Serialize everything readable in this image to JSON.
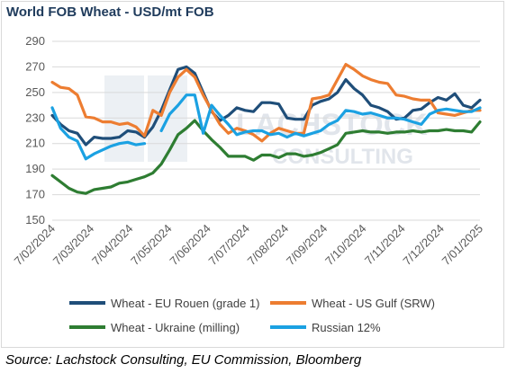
{
  "chart_title": "World FOB Wheat - USD/mt FOB",
  "source": "Source: Lachstock Consulting, EU Commission, Bloomberg",
  "watermark": {
    "line1": "LACHSTOCK",
    "line2": "CONSULTING"
  },
  "chart_data": {
    "type": "line",
    "title": "World FOB Wheat - USD/mt FOB",
    "xlabel": "",
    "ylabel": "",
    "ylim": [
      150,
      290
    ],
    "yticks": [
      150,
      170,
      190,
      210,
      230,
      250,
      270,
      290
    ],
    "xtick_labels": [
      "7/02/2024",
      "7/03/2024",
      "7/04/2024",
      "7/05/2024",
      "7/06/2024",
      "7/07/2024",
      "7/08/2024",
      "7/09/2024",
      "7/10/2024",
      "7/11/2024",
      "7/12/2024",
      "7/01/2025"
    ],
    "x_range": [
      0,
      51
    ],
    "grid": "horizontal",
    "legend_position": "bottom",
    "series": [
      {
        "name": "Wheat - EU Rouen (grade 1)",
        "color": "#1f4e79",
        "values": [
          232,
          225,
          220,
          218,
          209,
          215,
          214,
          214,
          215,
          220,
          219,
          215,
          223,
          236,
          252,
          268,
          270,
          265,
          250,
          235,
          228,
          232,
          238,
          236,
          235,
          242,
          242,
          241,
          230,
          229,
          229,
          240,
          243,
          245,
          250,
          260,
          253,
          248,
          240,
          238,
          235,
          229,
          230,
          236,
          237,
          242,
          246,
          244,
          249,
          240,
          238,
          244
        ]
      },
      {
        "name": "Wheat - US Gulf (SRW)",
        "color": "#ed7d31",
        "values": [
          258,
          254,
          253,
          248,
          231,
          230,
          227,
          227,
          225,
          226,
          223,
          216,
          236,
          232,
          250,
          262,
          268,
          262,
          248,
          236,
          225,
          218,
          222,
          220,
          217,
          212,
          218,
          222,
          220,
          218,
          218,
          245,
          246,
          248,
          260,
          272,
          268,
          263,
          260,
          258,
          257,
          248,
          247,
          245,
          244,
          244,
          234,
          233,
          232,
          234,
          236,
          236
        ]
      },
      {
        "name": "Wheat - Ukraine (milling)",
        "color": "#2e7d32",
        "values": [
          185,
          180,
          175,
          172,
          171,
          174,
          175,
          176,
          179,
          180,
          182,
          184,
          187,
          194,
          205,
          217,
          222,
          228,
          220,
          213,
          207,
          200,
          200,
          200,
          197,
          201,
          201,
          199,
          202,
          202,
          200,
          201,
          203,
          206,
          209,
          218,
          219,
          220,
          219,
          219,
          218,
          219,
          219,
          220,
          219,
          220,
          220,
          221,
          220,
          220,
          219,
          227
        ]
      },
      {
        "name": "Russian 12%",
        "color": "#1ba1e2",
        "values": [
          238,
          222,
          215,
          212,
          198,
          202,
          205,
          208,
          210,
          211,
          209,
          210,
          null,
          220,
          233,
          240,
          248,
          248,
          218,
          240,
          232,
          225,
          217,
          219,
          220,
          220,
          217,
          218,
          215,
          218,
          216,
          218,
          220,
          225,
          228,
          236,
          235,
          233,
          234,
          232,
          230,
          230,
          229,
          227,
          225,
          233,
          236,
          237,
          236,
          235,
          235,
          238
        ]
      }
    ]
  }
}
